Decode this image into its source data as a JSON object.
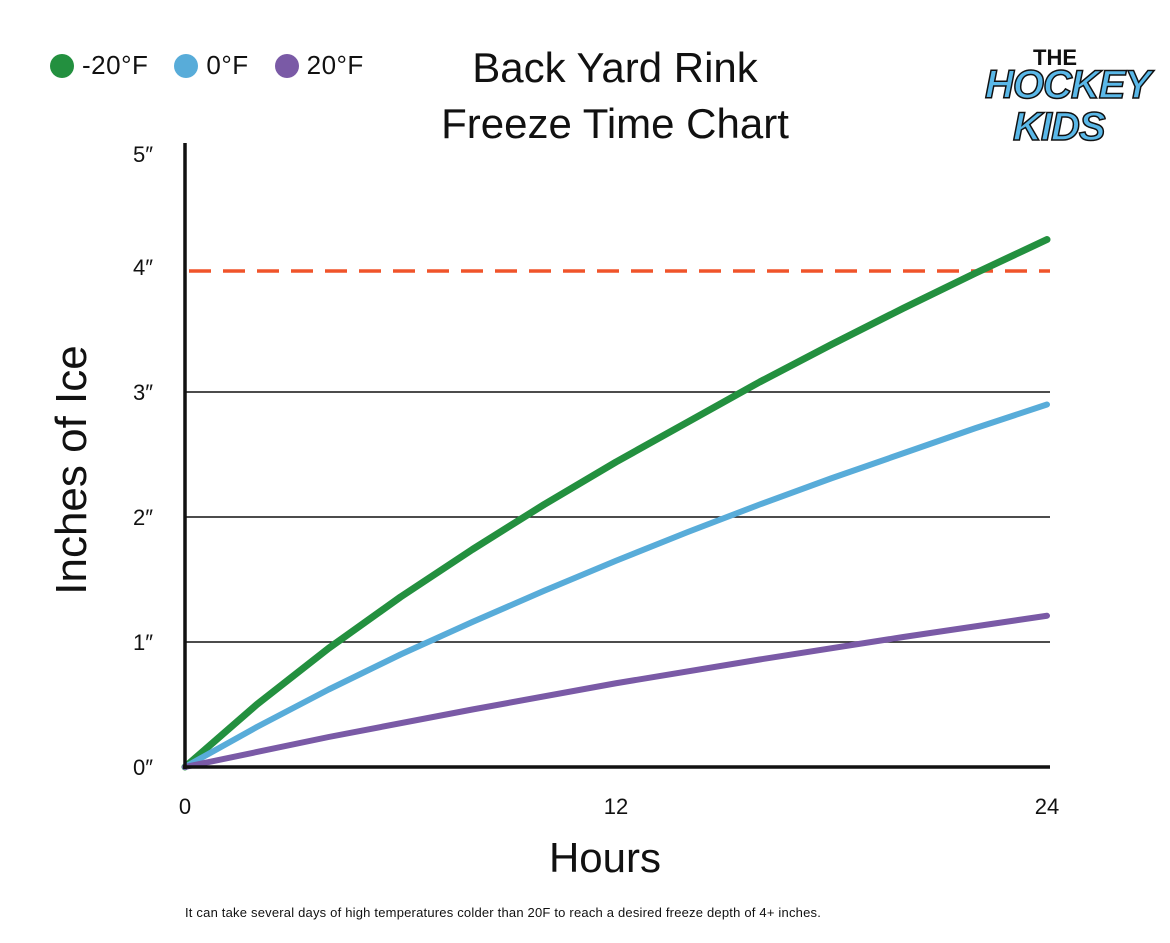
{
  "chart_data": {
    "type": "line",
    "title": [
      "Back Yard Rink",
      "Freeze Time Chart"
    ],
    "xlabel": "Hours",
    "ylabel": "Inches of Ice",
    "xlim": [
      0,
      24
    ],
    "ylim": [
      0,
      5
    ],
    "x_ticks": [
      {
        "value": 0,
        "label": "0"
      },
      {
        "value": 12,
        "label": "12"
      },
      {
        "value": 24,
        "label": "24"
      }
    ],
    "y_ticks": [
      {
        "value": 0,
        "label": "0″"
      },
      {
        "value": 1,
        "label": "1″"
      },
      {
        "value": 2,
        "label": "2″"
      },
      {
        "value": 3,
        "label": "3″"
      },
      {
        "value": 4,
        "label": "4″"
      },
      {
        "value": 5,
        "label": "5″"
      }
    ],
    "gridlines_y": [
      1,
      2,
      3
    ],
    "reference_line": {
      "y": 4,
      "style": "dashed",
      "color": "#f0542a"
    },
    "legend_position": "top-left",
    "series": [
      {
        "name": "-20°F",
        "color": "#23903f",
        "x": [
          0,
          2,
          4,
          6,
          8,
          10,
          12,
          14,
          16,
          18,
          20,
          22,
          24
        ],
        "y": [
          0,
          0.5,
          0.95,
          1.36,
          1.74,
          2.1,
          2.44,
          2.76,
          3.08,
          3.38,
          3.67,
          3.95,
          4.22
        ]
      },
      {
        "name": "0°F",
        "color": "#58acd9",
        "x": [
          0,
          2,
          4,
          6,
          8,
          10,
          12,
          14,
          16,
          18,
          20,
          22,
          24
        ],
        "y": [
          0,
          0.32,
          0.62,
          0.9,
          1.16,
          1.41,
          1.65,
          1.88,
          2.1,
          2.31,
          2.51,
          2.71,
          2.9
        ]
      },
      {
        "name": "20°F",
        "color": "#7a5aa6",
        "x": [
          0,
          4,
          8,
          12,
          16,
          20,
          24
        ],
        "y": [
          0,
          0.24,
          0.46,
          0.67,
          0.86,
          1.04,
          1.21
        ]
      }
    ],
    "annotation": "It can take several days of high temperatures colder than 20F to reach a desired freeze depth of 4+ inches."
  },
  "logo": {
    "line1": "THE",
    "line2": "HOCKEY",
    "line3": "KIDS"
  }
}
